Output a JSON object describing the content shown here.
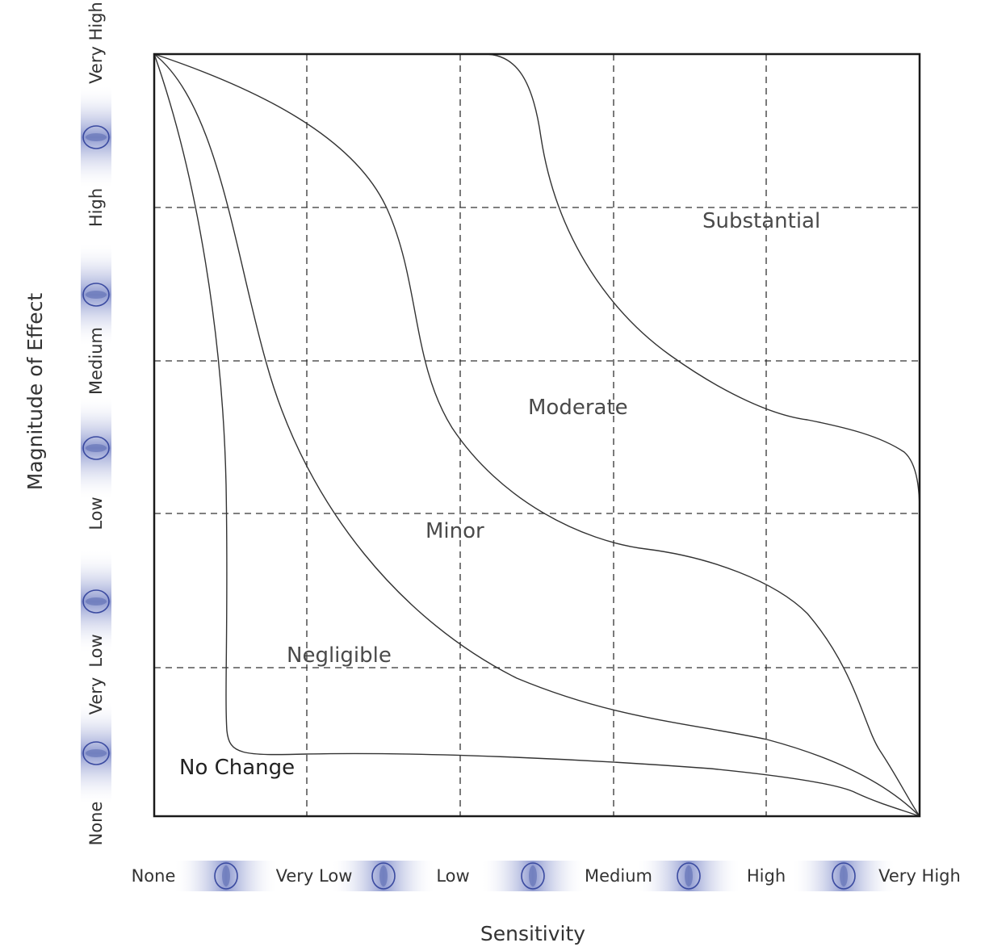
{
  "diagram": {
    "x_axis_title": "Sensitivity",
    "y_axis_title": "Magnitude of Effect",
    "x_levels": [
      "None",
      "Very Low",
      "Low",
      "Medium",
      "High",
      "Very High"
    ],
    "y_levels": [
      "None",
      "Very",
      "Low",
      "Low",
      "Medium",
      "High",
      "Very High"
    ],
    "zones": [
      {
        "id": "substantial",
        "label": "Substantial"
      },
      {
        "id": "moderate",
        "label": "Moderate"
      },
      {
        "id": "minor",
        "label": "Minor"
      },
      {
        "id": "negligible",
        "label": "Negligible"
      },
      {
        "id": "no-change",
        "label": "No Change"
      }
    ],
    "colors": {
      "frame": "#1a1a1a",
      "grid": "#333333",
      "curve": "#333333",
      "connector": "#5a6ab0"
    }
  }
}
